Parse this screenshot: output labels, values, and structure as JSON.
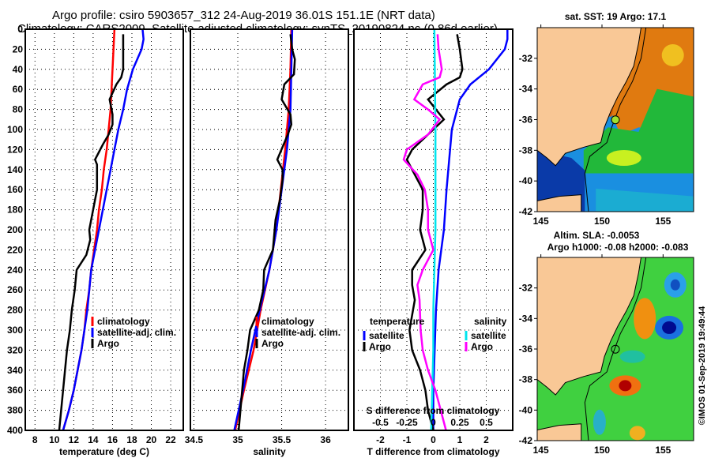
{
  "header": {
    "title_line1": "Argo profile: csiro 5903657_312 24-Aug-2019 36.01S 151.1E (NRT data)",
    "title_line2": "Climatology: CARS2009. Satellite-adjusted climatology: synTS_20190824.nc (0.86d earlier)"
  },
  "colors": {
    "climatology": "#ff0000",
    "satellite": "#0000ff",
    "argo": "#000000",
    "salinity_satellite": "#00e5ee",
    "salinity_argo": "#ff00ff",
    "land": "#f9c896"
  },
  "chart_data": [
    {
      "type": "line",
      "name": "temperature-profile",
      "xlabel": "temperature (deg C)",
      "ylabel": "",
      "xlim": [
        7,
        23.3
      ],
      "ylim": [
        400,
        0
      ],
      "x_ticks": [
        8,
        10,
        12,
        14,
        16,
        18,
        20,
        22
      ],
      "y_ticks": [
        0,
        20,
        40,
        60,
        80,
        100,
        120,
        140,
        160,
        180,
        200,
        220,
        240,
        260,
        280,
        300,
        320,
        340,
        360,
        380,
        400
      ],
      "grid": true,
      "legend": {
        "placement": "lower-right",
        "entries": [
          "climatology",
          "satellite-adj. clim.",
          "Argo"
        ]
      },
      "series": [
        {
          "name": "climatology",
          "color_key": "climatology",
          "depth": [
            0,
            20,
            40,
            60,
            80,
            100,
            120,
            140,
            160,
            180,
            200,
            220,
            240,
            260,
            280,
            300,
            320,
            340,
            360,
            380,
            400
          ],
          "values": [
            16.2,
            16.1,
            16.0,
            15.9,
            15.8,
            15.6,
            15.4,
            15.1,
            14.9,
            14.6,
            14.4,
            14.1,
            13.8,
            13.6,
            13.3,
            13.1,
            12.8,
            12.4,
            12.0,
            11.5,
            10.9
          ]
        },
        {
          "name": "satellite-adj. clim.",
          "color_key": "satellite",
          "depth": [
            0,
            10,
            20,
            40,
            60,
            80,
            100,
            120,
            140,
            160,
            180,
            200,
            220,
            240,
            260,
            280,
            300,
            320,
            340,
            360,
            380,
            400
          ],
          "values": [
            19.1,
            19.2,
            19.0,
            18.1,
            17.5,
            17.1,
            16.6,
            16.2,
            15.8,
            15.4,
            15.0,
            14.6,
            14.2,
            13.8,
            13.6,
            13.4,
            13.1,
            12.8,
            12.4,
            12.0,
            11.5,
            10.9
          ]
        },
        {
          "name": "Argo",
          "color_key": "argo",
          "depth": [
            5,
            20,
            40,
            48,
            55,
            70,
            75,
            85,
            95,
            105,
            115,
            130,
            135,
            150,
            160,
            180,
            200,
            210,
            225,
            240,
            260,
            280,
            300,
            320,
            340,
            360,
            380,
            400
          ],
          "values": [
            17.1,
            17.1,
            17.1,
            16.9,
            16.4,
            15.7,
            15.8,
            16.0,
            16.0,
            15.6,
            15.0,
            14.2,
            14.4,
            14.4,
            14.4,
            14.0,
            13.6,
            13.7,
            13.3,
            12.3,
            12.1,
            11.8,
            11.6,
            11.3,
            11.1,
            10.9,
            10.7,
            10.5
          ]
        }
      ]
    },
    {
      "type": "line",
      "name": "salinity-profile",
      "xlabel": "salinity",
      "xlim": [
        34.46,
        36.26
      ],
      "ylim": [
        400,
        0
      ],
      "x_ticks": [
        34.5,
        35,
        35.5,
        36
      ],
      "grid": true,
      "legend": {
        "placement": "lower-right",
        "entries": [
          "climatology",
          "satellite-adj. clim.",
          "Argo"
        ]
      },
      "series": [
        {
          "name": "climatology",
          "color_key": "climatology",
          "depth": [
            0,
            40,
            80,
            120,
            160,
            200,
            240,
            280,
            320,
            360,
            400
          ],
          "values": [
            35.61,
            35.6,
            35.58,
            35.54,
            35.49,
            35.44,
            35.36,
            35.26,
            35.18,
            35.07,
            34.97
          ]
        },
        {
          "name": "satellite-adj. clim.",
          "color_key": "satellite",
          "depth": [
            0,
            40,
            80,
            120,
            160,
            200,
            240,
            280,
            320,
            360,
            400
          ],
          "values": [
            35.62,
            35.61,
            35.6,
            35.56,
            35.5,
            35.44,
            35.36,
            35.25,
            35.15,
            35.06,
            34.96
          ]
        },
        {
          "name": "Argo",
          "color_key": "argo",
          "depth": [
            5,
            20,
            30,
            45,
            55,
            70,
            85,
            95,
            105,
            130,
            140,
            150,
            170,
            190,
            200,
            220,
            240,
            260,
            280,
            300,
            320,
            340,
            360,
            380,
            400
          ],
          "values": [
            35.6,
            35.62,
            35.65,
            35.64,
            35.53,
            35.5,
            35.6,
            35.61,
            35.57,
            35.45,
            35.51,
            35.51,
            35.48,
            35.43,
            35.42,
            35.4,
            35.3,
            35.29,
            35.24,
            35.14,
            35.11,
            35.07,
            35.05,
            35.03,
            35.01
          ]
        }
      ]
    },
    {
      "type": "line",
      "name": "difference-profile",
      "xlabel": "T difference from climatology",
      "secondary_xlabel": "S difference from climatology",
      "xlim": [
        -3,
        3
      ],
      "secondary_xlim": [
        -0.75,
        0.75
      ],
      "ylim": [
        400,
        0
      ],
      "x_ticks": [
        -2,
        -1,
        0,
        1,
        2
      ],
      "secondary_x_ticks": [
        -0.5,
        -0.25,
        0,
        0.25,
        0.5
      ],
      "grid": true,
      "legend": {
        "placement": "lower",
        "temperature_title": "temperature",
        "salinity_title": "salinity",
        "entries": [
          "satellite",
          "Argo",
          "satellite",
          "Argo"
        ]
      },
      "series": [
        {
          "name": "T satellite",
          "color_key": "satellite",
          "depth": [
            0,
            10,
            20,
            40,
            55,
            70,
            100,
            130,
            160,
            200,
            240,
            280,
            320,
            360,
            400
          ],
          "values": [
            2.8,
            2.8,
            2.7,
            2.1,
            1.4,
            1.0,
            0.7,
            0.6,
            0.5,
            0.4,
            0.2,
            0.1,
            0.05,
            0.0,
            0.0
          ]
        },
        {
          "name": "T Argo",
          "color_key": "argo",
          "depth": [
            5,
            20,
            40,
            48,
            55,
            70,
            80,
            90,
            105,
            120,
            130,
            145,
            160,
            180,
            200,
            220,
            240,
            255,
            270,
            300,
            320,
            340,
            360,
            380,
            400
          ],
          "values": [
            0.9,
            1.0,
            1.1,
            1.0,
            0.5,
            -0.2,
            0.1,
            0.4,
            -0.2,
            -0.8,
            -1.0,
            -0.7,
            -0.4,
            -0.4,
            -0.5,
            -0.3,
            -0.8,
            -0.8,
            -0.7,
            -0.9,
            -0.8,
            -0.5,
            -0.3,
            -0.2,
            0.0
          ]
        },
        {
          "name": "S satellite",
          "color_key": "salinity_satellite",
          "depth": [
            0,
            100,
            200,
            280,
            320,
            360,
            400
          ],
          "values": [
            0.01,
            0.02,
            0.02,
            0.0,
            0.0,
            -0.01,
            -0.02
          ]
        },
        {
          "name": "S Argo",
          "color_key": "salinity_argo",
          "depth": [
            5,
            20,
            40,
            48,
            55,
            70,
            80,
            90,
            105,
            120,
            130,
            145,
            160,
            180,
            200,
            220,
            240,
            255,
            270,
            300,
            320,
            340,
            360,
            380,
            400
          ],
          "values": [
            0.04,
            0.05,
            0.08,
            0.06,
            -0.1,
            -0.18,
            -0.05,
            0.06,
            -0.05,
            -0.25,
            -0.28,
            -0.15,
            -0.08,
            -0.05,
            -0.05,
            0.0,
            -0.1,
            -0.15,
            -0.13,
            -0.12,
            -0.1,
            -0.05,
            0.02,
            0.07,
            0.12
          ]
        }
      ]
    },
    {
      "type": "heatmap",
      "name": "sst-map",
      "title": "sat. SST: 19 Argo: 17.1",
      "xlim": [
        144.7,
        157.5
      ],
      "ylim": [
        -42,
        -30.0
      ],
      "x_ticks": [
        145,
        150,
        155
      ],
      "y_ticks": [
        -32,
        -34,
        -36,
        -38,
        -40,
        -42
      ],
      "argo_position": {
        "lon": 151.1,
        "lat": -36.01
      }
    },
    {
      "type": "heatmap",
      "name": "sla-map",
      "title_line1": "Altim. SLA: -0.0053",
      "title_line2": "Argo h1000: -0.08 h2000: -0.083",
      "xlim": [
        144.7,
        157.5
      ],
      "ylim": [
        -42,
        -30.0
      ],
      "x_ticks": [
        145,
        150,
        155
      ],
      "y_ticks": [
        -32,
        -34,
        -36,
        -38,
        -40,
        -42
      ],
      "argo_position": {
        "lon": 151.1,
        "lat": -36.01
      },
      "credit": "©IMOS 01-Sep-2019 19:49:44"
    }
  ]
}
